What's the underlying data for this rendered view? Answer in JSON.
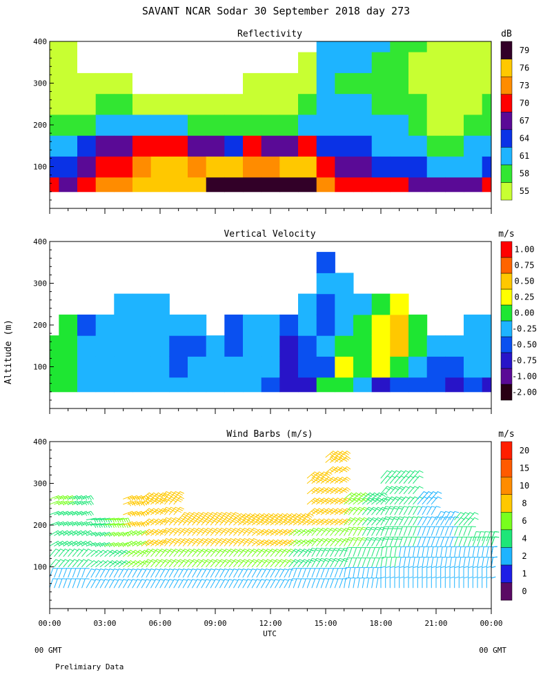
{
  "page": {
    "title": "SAVANT   NCAR Sodar   30 September 2018   day 273",
    "ylabel_shared": "Altitude (m)",
    "xlabel": "UTC",
    "footer_left": "00 GMT",
    "footer_right": "00 GMT",
    "note": "Prelimiary Data"
  },
  "chart_data": [
    {
      "type": "heatmap",
      "title": "Reflectivity",
      "units": "dB",
      "xlabel": "UTC",
      "ylabel": "Altitude (m)",
      "xlim_hours": [
        0,
        24
      ],
      "ylim": [
        0,
        400
      ],
      "data_ylim": [
        40,
        400
      ],
      "x_ticks": [
        "00:00",
        "03:00",
        "06:00",
        "09:00",
        "12:00",
        "15:00",
        "18:00",
        "21:00",
        "00:00"
      ],
      "y_ticks": [
        100,
        200,
        300,
        400
      ],
      "colorbar_levels": [
        "55",
        "58",
        "61",
        "64",
        "67",
        "70",
        "73",
        "76",
        "79"
      ],
      "colorbar_colors": [
        "#c8ff32",
        "#32e632",
        "#1eb4ff",
        "#0a32e6",
        "#5a0a96",
        "#ff0000",
        "#ff8c00",
        "#ffc800",
        "#320028"
      ],
      "lowest_bin_color": "#ffffff",
      "profile_hours": [
        0,
        1,
        2,
        3,
        4,
        5,
        6,
        7,
        8,
        9,
        10,
        11,
        12,
        13,
        14,
        15,
        16,
        17,
        18,
        19,
        20,
        21,
        22,
        23,
        24
      ],
      "profile_altitudes": [
        50,
        100,
        150,
        200,
        250,
        300,
        350,
        400
      ],
      "values_dB": [
        [
          70,
          66,
          62,
          59,
          57,
          57,
          56,
          56
        ],
        [
          68,
          64,
          61,
          59,
          57,
          56,
          55,
          55
        ],
        [
          72,
          69,
          64,
          60,
          57,
          55,
          54,
          54
        ],
        [
          73,
          71,
          67,
          62,
          58,
          55,
          53,
          53
        ],
        [
          75,
          72,
          69,
          63,
          58,
          55,
          53,
          52
        ],
        [
          76,
          74,
          70,
          62,
          57,
          54,
          53,
          52
        ],
        [
          77,
          76,
          71,
          62,
          56,
          54,
          53,
          52
        ],
        [
          77,
          76,
          71,
          62,
          56,
          54,
          53,
          52
        ],
        [
          77,
          75,
          69,
          60,
          56,
          54,
          53,
          52
        ],
        [
          79,
          76,
          67,
          58,
          55,
          54,
          53,
          52
        ],
        [
          80,
          76,
          66,
          58,
          55,
          54,
          53,
          52
        ],
        [
          79,
          75,
          70,
          60,
          57,
          55,
          54,
          53
        ],
        [
          79,
          74,
          68,
          59,
          56,
          55,
          53,
          53
        ],
        [
          80,
          76,
          69,
          60,
          57,
          55,
          54,
          53
        ],
        [
          80,
          78,
          72,
          62,
          58,
          56,
          55,
          54
        ],
        [
          74,
          70,
          66,
          63,
          62,
          61,
          62,
          63
        ],
        [
          72,
          68,
          64,
          62,
          61,
          60,
          61,
          62
        ],
        [
          72,
          67,
          64,
          62,
          61,
          60,
          61,
          62
        ],
        [
          71,
          66,
          63,
          61,
          60,
          59,
          60,
          61
        ],
        [
          71,
          66,
          62,
          61,
          59,
          58,
          59,
          60
        ],
        [
          69,
          64,
          61,
          59,
          58,
          57,
          57,
          58
        ],
        [
          68,
          62,
          59,
          57,
          56,
          55,
          55,
          56
        ],
        [
          67,
          62,
          59,
          57,
          56,
          55,
          55,
          56
        ],
        [
          67,
          63,
          61,
          59,
          57,
          56,
          56,
          57
        ],
        [
          70,
          65,
          62,
          60,
          58,
          57,
          57,
          57
        ]
      ]
    },
    {
      "type": "heatmap",
      "title": "Vertical Velocity",
      "units": "m/s",
      "xlabel": "UTC",
      "ylabel": "Altitude (m)",
      "xlim_hours": [
        0,
        24
      ],
      "ylim": [
        0,
        400
      ],
      "data_ylim": [
        40,
        400
      ],
      "x_ticks": [
        "00:00",
        "03:00",
        "06:00",
        "09:00",
        "12:00",
        "15:00",
        "18:00",
        "21:00",
        "00:00"
      ],
      "y_ticks": [
        100,
        200,
        300,
        400
      ],
      "colorbar_levels": [
        "-2.00",
        "-1.00",
        "-0.75",
        "-0.50",
        "-0.25",
        "0.00",
        "0.25",
        "0.50",
        "0.75",
        "1.00"
      ],
      "colorbar_colors": [
        "#280014",
        "#5a0a96",
        "#2814c8",
        "#0a50f0",
        "#1eb4ff",
        "#1ee632",
        "#ffff00",
        "#ffc800",
        "#ff6400",
        "#ff0000"
      ],
      "profile_hours": [
        0,
        1,
        2,
        3,
        4,
        5,
        6,
        7,
        8,
        9,
        10,
        11,
        12,
        13,
        14,
        15,
        16,
        17,
        18,
        19,
        20,
        21,
        22,
        23,
        24
      ],
      "profile_altitudes": [
        50,
        100,
        150,
        200,
        250,
        300,
        350,
        400
      ],
      "values_mps": [
        [
          0.1,
          0.1,
          0.1,
          null,
          null,
          null,
          null,
          null
        ],
        [
          0.0,
          0.0,
          0.0,
          0.0,
          null,
          null,
          null,
          null
        ],
        [
          -0.1,
          -0.2,
          -0.2,
          -0.3,
          null,
          null,
          null,
          null
        ],
        [
          -0.2,
          -0.2,
          -0.2,
          -0.2,
          null,
          null,
          null,
          null
        ],
        [
          -0.2,
          -0.2,
          -0.2,
          -0.2,
          -0.2,
          null,
          null,
          null
        ],
        [
          -0.2,
          -0.2,
          -0.2,
          -0.2,
          -0.2,
          null,
          null,
          null
        ],
        [
          -0.2,
          -0.2,
          -0.2,
          -0.2,
          -0.2,
          null,
          null,
          null
        ],
        [
          -0.2,
          -0.4,
          -0.3,
          -0.2,
          null,
          null,
          null,
          null
        ],
        [
          -0.2,
          -0.2,
          -0.4,
          -0.2,
          null,
          null,
          null,
          null
        ],
        [
          -0.2,
          -0.2,
          -0.2,
          null,
          null,
          null,
          null,
          null
        ],
        [
          -0.2,
          -0.2,
          -0.3,
          -0.3,
          null,
          null,
          null,
          null
        ],
        [
          -0.2,
          -0.2,
          -0.2,
          -0.2,
          null,
          null,
          null,
          null
        ],
        [
          -0.3,
          -0.2,
          -0.2,
          -0.2,
          null,
          null,
          null,
          null
        ],
        [
          -0.6,
          -0.6,
          -0.6,
          -0.4,
          null,
          null,
          null,
          null
        ],
        [
          -0.6,
          -0.4,
          -0.3,
          -0.2,
          -0.2,
          null,
          null,
          null
        ],
        [
          0.0,
          -0.3,
          -0.2,
          -0.3,
          -0.3,
          -0.2,
          -0.3,
          null
        ],
        [
          0.0,
          0.3,
          0.1,
          -0.2,
          -0.2,
          -0.2,
          null,
          null
        ],
        [
          -0.2,
          0.0,
          0.1,
          0.0,
          -0.2,
          null,
          null,
          null
        ],
        [
          -0.6,
          0.3,
          0.4,
          0.3,
          0.2,
          null,
          null,
          null
        ],
        [
          -0.4,
          0.2,
          0.5,
          0.5,
          0.3,
          null,
          null,
          null
        ],
        [
          -0.4,
          -0.2,
          0.0,
          0.1,
          null,
          null,
          null,
          null
        ],
        [
          -0.5,
          -0.3,
          -0.2,
          null,
          null,
          null,
          null,
          null
        ],
        [
          -0.6,
          -0.5,
          -0.2,
          null,
          null,
          null,
          null,
          null
        ],
        [
          -0.5,
          -0.2,
          -0.2,
          -0.2,
          null,
          null,
          null,
          null
        ],
        [
          -0.6,
          -0.2,
          -0.2,
          -0.2,
          null,
          null,
          null,
          null
        ]
      ]
    },
    {
      "type": "wind_barbs",
      "title": "Wind Barbs (m/s)",
      "units": "m/s",
      "xlabel": "UTC",
      "ylabel": "Altitude (m)",
      "xlim_hours": [
        0,
        24
      ],
      "ylim": [
        0,
        400
      ],
      "x_ticks": [
        "00:00",
        "03:00",
        "06:00",
        "09:00",
        "12:00",
        "15:00",
        "18:00",
        "21:00",
        "00:00"
      ],
      "y_ticks": [
        100,
        200,
        300,
        400
      ],
      "colorbar_levels": [
        "0",
        "1",
        "2",
        "4",
        "6",
        "8",
        "10",
        "15",
        "20"
      ],
      "colorbar_colors": [
        "#5a0a64",
        "#1e1ee6",
        "#1eb4ff",
        "#1ee678",
        "#78ff1e",
        "#ffc800",
        "#ff8c00",
        "#ff5a00",
        "#ff1e00"
      ],
      "profile_hours": [
        0,
        1,
        2,
        3,
        4,
        5,
        6,
        7,
        8,
        9,
        10,
        11,
        12,
        13,
        14,
        15,
        16,
        17,
        18,
        19,
        20,
        21,
        22,
        23,
        24
      ],
      "profile_altitudes": [
        50,
        100,
        150,
        200,
        250,
        300,
        350,
        400
      ],
      "speed_mps": [
        [
          2,
          4,
          5,
          5,
          6,
          null,
          null,
          null
        ],
        [
          2,
          4,
          5,
          5,
          5,
          null,
          null,
          null
        ],
        [
          2,
          4,
          5,
          5,
          null,
          null,
          null,
          null
        ],
        [
          2,
          5,
          6,
          7,
          null,
          null,
          null,
          null
        ],
        [
          2,
          6,
          7,
          8,
          8,
          null,
          null,
          null
        ],
        [
          3,
          7,
          8,
          9,
          9,
          null,
          null,
          null
        ],
        [
          3,
          7,
          9,
          9,
          9,
          null,
          null,
          null
        ],
        [
          3,
          7,
          9,
          9,
          null,
          null,
          null,
          null
        ],
        [
          3,
          7,
          9,
          8,
          null,
          null,
          null,
          null
        ],
        [
          3,
          7,
          8,
          8,
          null,
          null,
          null,
          null
        ],
        [
          3,
          7,
          8,
          9,
          null,
          null,
          null,
          null
        ],
        [
          3,
          7,
          8,
          8,
          null,
          null,
          null,
          null
        ],
        [
          3,
          7,
          8,
          8,
          null,
          null,
          null,
          null
        ],
        [
          2,
          5,
          7,
          8,
          null,
          null,
          null,
          null
        ],
        [
          2,
          5,
          7,
          8,
          9,
          9,
          null,
          null
        ],
        [
          2,
          5,
          7,
          8,
          9,
          9,
          9,
          null
        ],
        [
          3,
          4,
          6,
          6,
          7,
          null,
          null,
          null
        ],
        [
          3,
          4,
          5,
          5,
          5,
          null,
          null,
          null
        ],
        [
          3,
          4,
          5,
          5,
          5,
          4,
          null,
          null
        ],
        [
          3,
          3,
          4,
          4,
          4,
          4,
          null,
          null
        ],
        [
          3,
          3,
          3,
          3,
          3,
          null,
          null,
          null
        ],
        [
          3,
          3,
          3,
          3,
          null,
          null,
          null,
          null
        ],
        [
          3,
          3,
          4,
          4,
          null,
          null,
          null,
          null
        ],
        [
          3,
          3,
          4,
          null,
          null,
          null,
          null,
          null
        ],
        [
          3,
          3,
          4,
          null,
          null,
          null,
          null,
          null
        ]
      ],
      "direction_deg": [
        [
          200,
          220,
          240,
          250,
          250,
          null,
          null,
          null
        ],
        [
          200,
          220,
          240,
          250,
          250,
          null,
          null,
          null
        ],
        [
          210,
          230,
          250,
          260,
          null,
          null,
          null,
          null
        ],
        [
          210,
          230,
          250,
          260,
          null,
          null,
          null,
          null
        ],
        [
          210,
          230,
          240,
          250,
          250,
          null,
          null,
          null
        ],
        [
          210,
          220,
          230,
          230,
          230,
          null,
          null,
          null
        ],
        [
          210,
          220,
          220,
          220,
          220,
          null,
          null,
          null
        ],
        [
          210,
          220,
          220,
          220,
          null,
          null,
          null,
          null
        ],
        [
          210,
          220,
          220,
          220,
          null,
          null,
          null,
          null
        ],
        [
          210,
          220,
          220,
          220,
          null,
          null,
          null,
          null
        ],
        [
          210,
          220,
          220,
          230,
          null,
          null,
          null,
          null
        ],
        [
          210,
          220,
          230,
          230,
          null,
          null,
          null,
          null
        ],
        [
          210,
          220,
          230,
          230,
          null,
          null,
          null,
          null
        ],
        [
          200,
          220,
          230,
          230,
          null,
          null,
          null,
          null
        ],
        [
          200,
          210,
          220,
          230,
          230,
          230,
          null,
          null
        ],
        [
          200,
          210,
          220,
          230,
          230,
          230,
          230,
          null
        ],
        [
          190,
          200,
          210,
          220,
          230,
          null,
          null,
          null
        ],
        [
          190,
          200,
          210,
          220,
          230,
          null,
          null,
          null
        ],
        [
          180,
          190,
          200,
          210,
          220,
          220,
          null,
          null
        ],
        [
          180,
          190,
          200,
          210,
          220,
          220,
          null,
          null
        ],
        [
          180,
          190,
          200,
          210,
          220,
          null,
          null,
          null
        ],
        [
          180,
          190,
          200,
          210,
          null,
          null,
          null,
          null
        ],
        [
          180,
          190,
          200,
          220,
          null,
          null,
          null,
          null
        ],
        [
          180,
          190,
          200,
          null,
          null,
          null,
          null,
          null
        ],
        [
          180,
          190,
          200,
          null,
          null,
          null,
          null,
          null
        ]
      ]
    }
  ]
}
